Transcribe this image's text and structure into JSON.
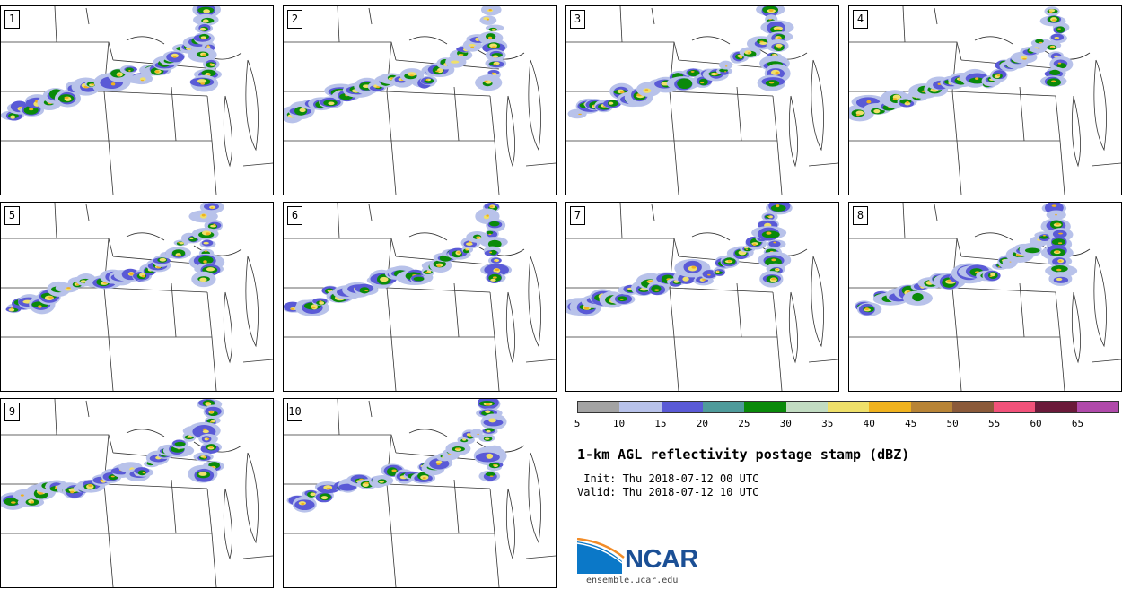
{
  "panels": [
    {
      "label": "1"
    },
    {
      "label": "2"
    },
    {
      "label": "3"
    },
    {
      "label": "4"
    },
    {
      "label": "5"
    },
    {
      "label": "6"
    },
    {
      "label": "7"
    },
    {
      "label": "8"
    },
    {
      "label": "9"
    },
    {
      "label": "10"
    }
  ],
  "colorbar": {
    "ticks": [
      "5",
      "10",
      "15",
      "20",
      "25",
      "30",
      "35",
      "40",
      "45",
      "50",
      "55",
      "60",
      "65"
    ],
    "colors": [
      "#a3a3a3",
      "#b8c2ea",
      "#5a5ad6",
      "#4f9b9b",
      "#0a8a0a",
      "#c2dcc2",
      "#efe06a",
      "#f0b21e",
      "#b88436",
      "#8b5a3a",
      "#f2527a",
      "#6b1a3a",
      "#b04aaa"
    ]
  },
  "title": "1-km AGL reflectivity postage stamp (dBZ)",
  "init": " Init: Thu 2018-07-12 00 UTC",
  "valid": "Valid: Thu 2018-07-12 10 UTC",
  "logo": {
    "text": "NCAR",
    "url": "ensemble.ucar.edu"
  },
  "colors": {
    "state_lines": "#333333",
    "logo_blue": "#1b4f95",
    "logo_orange": "#f28c28"
  }
}
